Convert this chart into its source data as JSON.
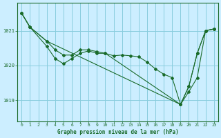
{
  "background_color": "#cceeff",
  "plot_bg_color": "#cceeff",
  "line_color": "#1a6b2a",
  "marker_color": "#1a6b2a",
  "grid_color": "#88ccdd",
  "xlabel": "Graphe pression niveau de la mer (hPa)",
  "xlabel_color": "#1a6b2a",
  "ytick_values": [
    1019,
    1020,
    1021
  ],
  "ylim": [
    1018.4,
    1021.8
  ],
  "xlim": [
    -0.5,
    23.5
  ],
  "series": {
    "line1_x": [
      0,
      1,
      3,
      4,
      5,
      6,
      7,
      8,
      9,
      10,
      11,
      12,
      13,
      14,
      15,
      16,
      17,
      18,
      19,
      20,
      21,
      22,
      23
    ],
    "line1_y": [
      1021.5,
      1021.1,
      1020.7,
      1020.45,
      1020.3,
      1020.3,
      1020.45,
      1020.45,
      1020.4,
      1020.35,
      1020.28,
      1020.3,
      1020.28,
      1020.25,
      1020.1,
      1019.9,
      1019.75,
      1019.65,
      1018.88,
      1019.4,
      1020.35,
      1021.0,
      1021.05
    ],
    "line2_x": [
      0,
      1,
      3,
      4,
      5,
      6,
      7,
      8,
      9,
      10,
      19,
      20,
      21,
      22,
      23
    ],
    "line2_y": [
      1021.5,
      1021.1,
      1020.55,
      1020.2,
      1020.05,
      1020.2,
      1020.35,
      1020.42,
      1020.35,
      1020.35,
      1018.88,
      1019.4,
      1020.35,
      1021.0,
      1021.05
    ],
    "line3_x": [
      0,
      1,
      3,
      19,
      20,
      21,
      22,
      23
    ],
    "line3_y": [
      1021.5,
      1021.1,
      1020.7,
      1018.88,
      1019.25,
      1019.65,
      1021.0,
      1021.05
    ]
  }
}
